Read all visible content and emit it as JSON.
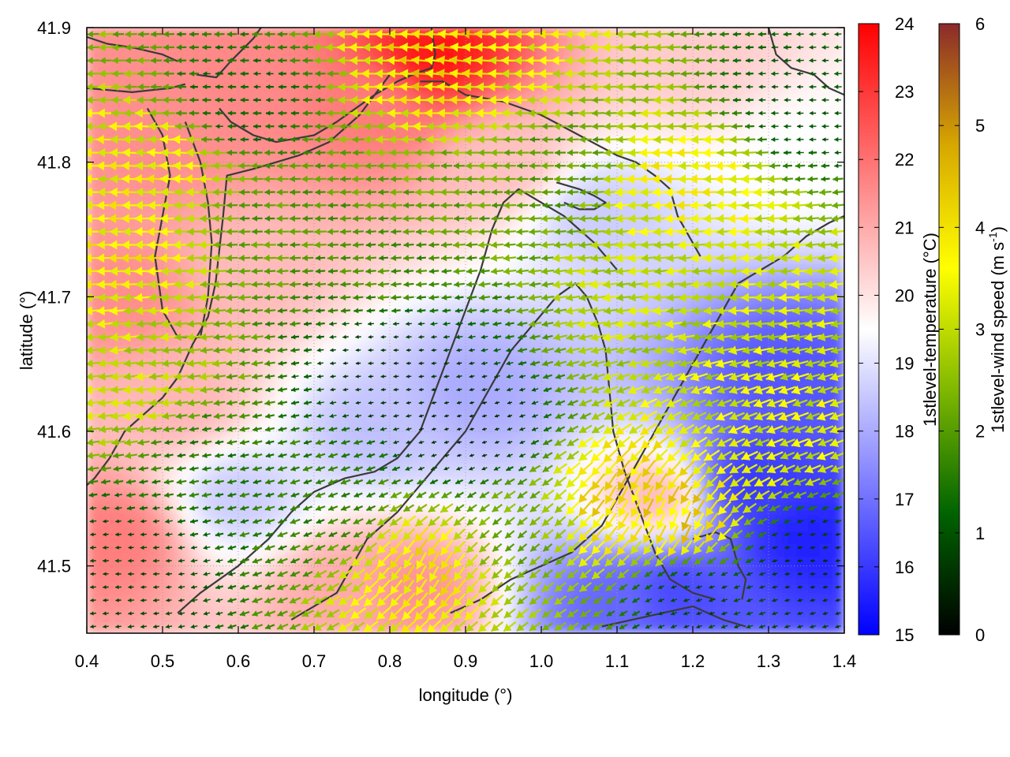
{
  "chart_data": {
    "type": "heatmap",
    "title": "",
    "xlabel": "longitude (°)",
    "ylabel": "latitude (°)",
    "xlim": [
      0.4,
      1.4
    ],
    "ylim": [
      41.45,
      41.9
    ],
    "xticks": [
      "0.4",
      "0.5",
      "0.6",
      "0.7",
      "0.8",
      "0.9",
      "1.0",
      "1.1",
      "1.2",
      "1.3",
      "1.4"
    ],
    "xtick_values": [
      0.4,
      0.5,
      0.6,
      0.7,
      0.8,
      0.9,
      1.0,
      1.1,
      1.2,
      1.3,
      1.4
    ],
    "yticks": [
      "41.5",
      "41.6",
      "41.7",
      "41.8",
      "41.9"
    ],
    "ytick_values": [
      41.5,
      41.6,
      41.7,
      41.8,
      41.9
    ],
    "grid": true,
    "temperature_colorbar": {
      "label": "1stlevel-temperature (°C)",
      "range": [
        15,
        24
      ],
      "ticks": [
        "15",
        "16",
        "17",
        "18",
        "19",
        "20",
        "21",
        "22",
        "23",
        "24"
      ],
      "tick_values": [
        15,
        16,
        17,
        18,
        19,
        20,
        21,
        22,
        23,
        24
      ],
      "colors": [
        "#0000ff",
        "#ffffff",
        "#ff0000"
      ]
    },
    "wind_colorbar": {
      "label_main": "1stlevel-wind speed (m s",
      "label_sup": "-1",
      "label_end": ")",
      "range": [
        0,
        6
      ],
      "ticks": [
        "0",
        "1",
        "2",
        "3",
        "4",
        "5",
        "6"
      ],
      "tick_values": [
        0,
        1,
        2,
        3,
        4,
        5,
        6
      ],
      "colors": [
        "#000000",
        "#006400",
        "#7fb800",
        "#ffff00",
        "#d7a800",
        "#8b2a2a"
      ]
    },
    "temperature_regions": [
      {
        "lon": 0.86,
        "lat": 41.88,
        "value": 23.6
      },
      {
        "lon": 0.78,
        "lat": 41.84,
        "value": 21.8
      },
      {
        "lon": 0.62,
        "lat": 41.86,
        "value": 21.6
      },
      {
        "lon": 0.5,
        "lat": 41.82,
        "value": 21.5
      },
      {
        "lon": 0.45,
        "lat": 41.7,
        "value": 21.5
      },
      {
        "lon": 0.44,
        "lat": 41.52,
        "value": 21.8
      },
      {
        "lon": 0.52,
        "lat": 41.62,
        "value": 20.8
      },
      {
        "lon": 0.62,
        "lat": 41.72,
        "value": 20.7
      },
      {
        "lon": 0.83,
        "lat": 41.48,
        "value": 21.4
      },
      {
        "lon": 0.74,
        "lat": 41.48,
        "value": 21.0
      },
      {
        "lon": 0.95,
        "lat": 41.8,
        "value": 20.6
      },
      {
        "lon": 1.2,
        "lat": 41.88,
        "value": 20.4
      },
      {
        "lon": 1.15,
        "lat": 41.55,
        "value": 20.7
      },
      {
        "lon": 1.35,
        "lat": 41.8,
        "value": 19.5
      },
      {
        "lon": 0.92,
        "lat": 41.63,
        "value": 18.0
      },
      {
        "lon": 0.78,
        "lat": 41.6,
        "value": 18.4
      },
      {
        "lon": 1.08,
        "lat": 41.76,
        "value": 18.6
      },
      {
        "lon": 0.6,
        "lat": 41.55,
        "value": 18.6
      },
      {
        "lon": 1.35,
        "lat": 41.52,
        "value": 15.6
      },
      {
        "lon": 1.28,
        "lat": 41.56,
        "value": 16.0
      },
      {
        "lon": 1.18,
        "lat": 41.48,
        "value": 16.3
      },
      {
        "lon": 1.33,
        "lat": 41.64,
        "value": 16.5
      },
      {
        "lon": 1.1,
        "lat": 41.47,
        "value": 16.8
      }
    ],
    "wind_regions": [
      {
        "lon": 0.45,
        "lat": 41.74,
        "speed": 3.6,
        "dir_deg": 180
      },
      {
        "lon": 0.5,
        "lat": 41.8,
        "speed": 3.5,
        "dir_deg": 175
      },
      {
        "lon": 0.47,
        "lat": 41.63,
        "speed": 3.0,
        "dir_deg": 185
      },
      {
        "lon": 0.88,
        "lat": 41.87,
        "speed": 4.0,
        "dir_deg": 170
      },
      {
        "lon": 0.92,
        "lat": 41.85,
        "speed": 3.4,
        "dir_deg": 180
      },
      {
        "lon": 0.88,
        "lat": 41.78,
        "speed": 2.2,
        "dir_deg": 180
      },
      {
        "lon": 1.2,
        "lat": 41.78,
        "speed": 3.6,
        "dir_deg": 180
      },
      {
        "lon": 1.15,
        "lat": 41.7,
        "speed": 3.0,
        "dir_deg": 185
      },
      {
        "lon": 1.28,
        "lat": 41.7,
        "speed": 3.1,
        "dir_deg": 180
      },
      {
        "lon": 1.3,
        "lat": 41.6,
        "speed": 3.3,
        "dir_deg": 200
      },
      {
        "lon": 1.12,
        "lat": 41.55,
        "speed": 4.0,
        "dir_deg": 250
      },
      {
        "lon": 1.18,
        "lat": 41.53,
        "speed": 4.1,
        "dir_deg": 260
      },
      {
        "lon": 0.85,
        "lat": 41.5,
        "speed": 3.8,
        "dir_deg": 250
      },
      {
        "lon": 0.95,
        "lat": 41.52,
        "speed": 2.3,
        "dir_deg": 220
      },
      {
        "lon": 0.72,
        "lat": 41.55,
        "speed": 1.6,
        "dir_deg": 200
      },
      {
        "lon": 0.66,
        "lat": 41.75,
        "speed": 2.0,
        "dir_deg": 180
      },
      {
        "lon": 0.55,
        "lat": 41.58,
        "speed": 1.5,
        "dir_deg": 190
      },
      {
        "lon": 0.78,
        "lat": 41.72,
        "speed": 1.8,
        "dir_deg": 185
      },
      {
        "lon": 0.8,
        "lat": 41.65,
        "speed": 0.6,
        "dir_deg": 180
      },
      {
        "lon": 0.9,
        "lat": 41.6,
        "speed": 0.5,
        "dir_deg": 190
      },
      {
        "lon": 1.0,
        "lat": 41.8,
        "speed": 2.0,
        "dir_deg": 180
      },
      {
        "lon": 1.35,
        "lat": 41.84,
        "speed": 1.0,
        "dir_deg": 180
      },
      {
        "lon": 0.6,
        "lat": 41.84,
        "speed": 1.2,
        "dir_deg": 180
      },
      {
        "lon": 1.2,
        "lat": 41.48,
        "speed": 0.8,
        "dir_deg": 190
      },
      {
        "lon": 1.35,
        "lat": 41.5,
        "speed": 0.6,
        "dir_deg": 180
      },
      {
        "lon": 0.45,
        "lat": 41.5,
        "speed": 0.8,
        "dir_deg": 180
      }
    ],
    "contour_lines": [
      [
        [
          0.4,
          41.893
        ],
        [
          0.427,
          41.888
        ],
        [
          0.462,
          41.885
        ],
        [
          0.5,
          41.88
        ],
        [
          0.52,
          41.875
        ]
      ],
      [
        [
          0.545,
          41.865
        ],
        [
          0.571,
          41.863
        ],
        [
          0.59,
          41.875
        ],
        [
          0.62,
          41.892
        ],
        [
          0.63,
          41.9
        ]
      ],
      [
        [
          0.4,
          41.855
        ],
        [
          0.46,
          41.852
        ],
        [
          0.51,
          41.855
        ],
        [
          0.53,
          41.858
        ]
      ],
      [
        [
          0.575,
          41.84
        ],
        [
          0.59,
          41.83
        ],
        [
          0.62,
          41.82
        ],
        [
          0.65,
          41.815
        ],
        [
          0.7,
          41.82
        ],
        [
          0.73,
          41.83
        ],
        [
          0.78,
          41.85
        ],
        [
          0.81,
          41.86
        ],
        [
          0.83,
          41.865
        ],
        [
          0.855,
          41.87
        ],
        [
          0.86,
          41.88
        ],
        [
          0.855,
          41.9
        ]
      ],
      [
        [
          0.84,
          41.86
        ],
        [
          0.87,
          41.86
        ],
        [
          0.9,
          41.85
        ],
        [
          0.95,
          41.845
        ],
        [
          1.0,
          41.835
        ],
        [
          1.05,
          41.82
        ],
        [
          1.1,
          41.805
        ],
        [
          1.125,
          41.8
        ],
        [
          1.15,
          41.79
        ],
        [
          1.17,
          41.78
        ],
        [
          1.18,
          41.76
        ],
        [
          1.2,
          41.74
        ],
        [
          1.21,
          41.73
        ]
      ],
      [
        [
          0.8,
          41.865
        ],
        [
          0.78,
          41.85
        ],
        [
          0.76,
          41.835
        ],
        [
          0.74,
          41.825
        ],
        [
          0.72,
          41.815
        ],
        [
          0.7,
          41.81
        ],
        [
          0.68,
          41.805
        ],
        [
          0.65,
          41.8
        ],
        [
          0.62,
          41.795
        ],
        [
          0.585,
          41.79
        ],
        [
          0.58,
          41.76
        ],
        [
          0.575,
          41.735
        ],
        [
          0.57,
          41.71
        ],
        [
          0.56,
          41.685
        ],
        [
          0.54,
          41.665
        ],
        [
          0.52,
          41.64
        ],
        [
          0.5,
          41.625
        ],
        [
          0.47,
          41.61
        ],
        [
          0.45,
          41.6
        ],
        [
          0.43,
          41.58
        ],
        [
          0.41,
          41.565
        ],
        [
          0.4,
          41.56
        ]
      ],
      [
        [
          0.48,
          41.84
        ],
        [
          0.5,
          41.82
        ],
        [
          0.51,
          41.79
        ],
        [
          0.5,
          41.76
        ],
        [
          0.49,
          41.73
        ],
        [
          0.5,
          41.69
        ],
        [
          0.52,
          41.67
        ],
        [
          0.55,
          41.67
        ],
        [
          0.56,
          41.7
        ],
        [
          0.565,
          41.74
        ],
        [
          0.56,
          41.77
        ],
        [
          0.55,
          41.8
        ],
        [
          0.53,
          41.83
        ]
      ],
      [
        [
          0.52,
          41.465
        ],
        [
          0.55,
          41.48
        ],
        [
          0.6,
          41.5
        ],
        [
          0.64,
          41.52
        ],
        [
          0.67,
          41.54
        ],
        [
          0.7,
          41.555
        ],
        [
          0.74,
          41.565
        ],
        [
          0.78,
          41.57
        ],
        [
          0.81,
          41.58
        ],
        [
          0.84,
          41.6
        ],
        [
          0.86,
          41.63
        ],
        [
          0.88,
          41.66
        ],
        [
          0.9,
          41.69
        ],
        [
          0.92,
          41.72
        ],
        [
          0.935,
          41.75
        ],
        [
          0.95,
          41.77
        ],
        [
          0.97,
          41.78
        ],
        [
          1.0,
          41.77
        ],
        [
          1.03,
          41.76
        ],
        [
          1.05,
          41.75
        ],
        [
          1.07,
          41.74
        ],
        [
          1.085,
          41.73
        ],
        [
          1.1,
          41.72
        ]
      ],
      [
        [
          0.67,
          41.46
        ],
        [
          0.7,
          41.47
        ],
        [
          0.73,
          41.48
        ],
        [
          0.75,
          41.5
        ],
        [
          0.77,
          41.52
        ],
        [
          0.79,
          41.53
        ],
        [
          0.81,
          41.54
        ],
        [
          0.84,
          41.56
        ],
        [
          0.87,
          41.58
        ],
        [
          0.9,
          41.6
        ],
        [
          0.93,
          41.63
        ],
        [
          0.96,
          41.66
        ],
        [
          0.99,
          41.68
        ],
        [
          1.02,
          41.7
        ],
        [
          1.045,
          41.71
        ],
        [
          1.06,
          41.7
        ],
        [
          1.075,
          41.68
        ],
        [
          1.085,
          41.66
        ],
        [
          1.09,
          41.63
        ],
        [
          1.095,
          41.6
        ],
        [
          1.11,
          41.57
        ],
        [
          1.13,
          41.54
        ],
        [
          1.15,
          41.51
        ],
        [
          1.17,
          41.49
        ],
        [
          1.2,
          41.48
        ],
        [
          1.23,
          41.475
        ]
      ],
      [
        [
          0.88,
          41.465
        ],
        [
          0.92,
          41.475
        ],
        [
          0.96,
          41.49
        ],
        [
          1.0,
          41.5
        ],
        [
          1.04,
          41.51
        ],
        [
          1.08,
          41.53
        ],
        [
          1.1,
          41.55
        ],
        [
          1.12,
          41.57
        ],
        [
          1.15,
          41.6
        ],
        [
          1.18,
          41.63
        ],
        [
          1.21,
          41.66
        ],
        [
          1.24,
          41.69
        ],
        [
          1.26,
          41.71
        ],
        [
          1.29,
          41.72
        ],
        [
          1.32,
          41.73
        ],
        [
          1.35,
          41.745
        ],
        [
          1.38,
          41.755
        ],
        [
          1.4,
          41.76
        ]
      ],
      [
        [
          1.2,
          41.52
        ],
        [
          1.23,
          41.525
        ],
        [
          1.25,
          41.52
        ],
        [
          1.26,
          41.5
        ],
        [
          1.27,
          41.49
        ],
        [
          1.265,
          41.475
        ]
      ],
      [
        [
          1.08,
          41.455
        ],
        [
          1.12,
          41.46
        ],
        [
          1.16,
          41.465
        ],
        [
          1.2,
          41.47
        ],
        [
          1.24,
          41.46
        ],
        [
          1.27,
          41.455
        ]
      ],
      [
        [
          1.3,
          41.9
        ],
        [
          1.31,
          41.88
        ],
        [
          1.33,
          41.87
        ],
        [
          1.36,
          41.865
        ],
        [
          1.38,
          41.855
        ],
        [
          1.4,
          41.85
        ]
      ],
      [
        [
          1.02,
          41.785
        ],
        [
          1.05,
          41.78
        ],
        [
          1.07,
          41.775
        ],
        [
          1.085,
          41.77
        ],
        [
          1.07,
          41.765
        ],
        [
          1.05,
          41.765
        ],
        [
          1.03,
          41.77
        ]
      ]
    ]
  }
}
